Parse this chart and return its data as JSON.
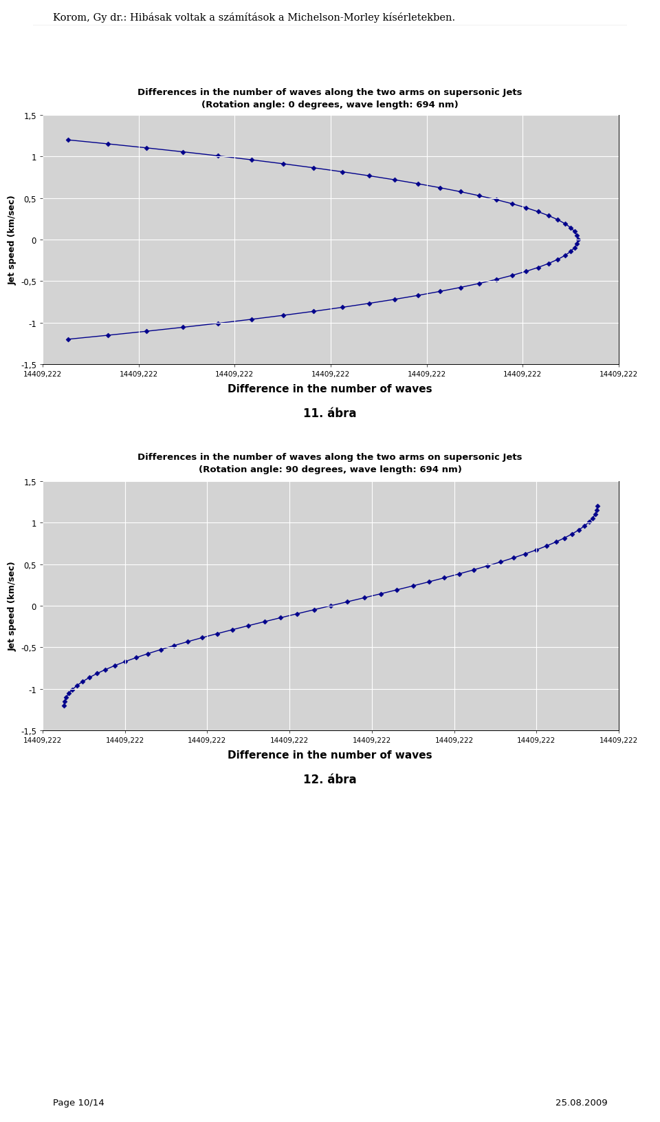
{
  "header_text": "Korom, Gy dr.: Hibásak voltak a számítások a Michelson-Morley kísérletekben.",
  "footer_left": "Page 10/14",
  "footer_right": "25.08.2009",
  "chart1": {
    "title_line1": "Differences in the number of waves along the two arms on supersonic Jets",
    "title_line2": "(Rotation angle: 0 degrees, wave length: 694 nm)",
    "xlabel": "Difference in the number of waves",
    "ylabel": "Jet speed (km/sec)",
    "figure_label": "11. ábra",
    "ylim": [
      -1.5,
      1.5
    ],
    "yticks": [
      -1.5,
      -1.0,
      -0.5,
      0.0,
      0.5,
      1.0,
      1.5
    ],
    "ytick_labels": [
      "-1,5",
      "-1",
      "-0,5",
      "0",
      "0,5",
      "1",
      "1,5"
    ],
    "xtick_label": "14409,222",
    "num_xticks": 7,
    "bg_color": "#d3d3d3",
    "line_color": "#00008B",
    "marker_color": "#00008B"
  },
  "chart2": {
    "title_line1": "Differences in the number of waves along the two arms on supersonic Jets",
    "title_line2": "(Rotation angle: 90 degrees, wave length: 694 nm)",
    "xlabel": "Difference in the number of waves",
    "ylabel": "Jet speed (km/sec)",
    "figure_label": "12. ábra",
    "ylim": [
      -1.5,
      1.5
    ],
    "yticks": [
      -1.5,
      -1.0,
      -0.5,
      0.0,
      0.5,
      1.0,
      1.5
    ],
    "ytick_labels": [
      "-1,5",
      "-1",
      "-0,5",
      "0",
      "0,5",
      "1",
      "1,5"
    ],
    "xtick_label": "14409,222",
    "num_xticks": 8,
    "bg_color": "#d3d3d3",
    "line_color": "#00008B",
    "marker_color": "#00008B"
  }
}
